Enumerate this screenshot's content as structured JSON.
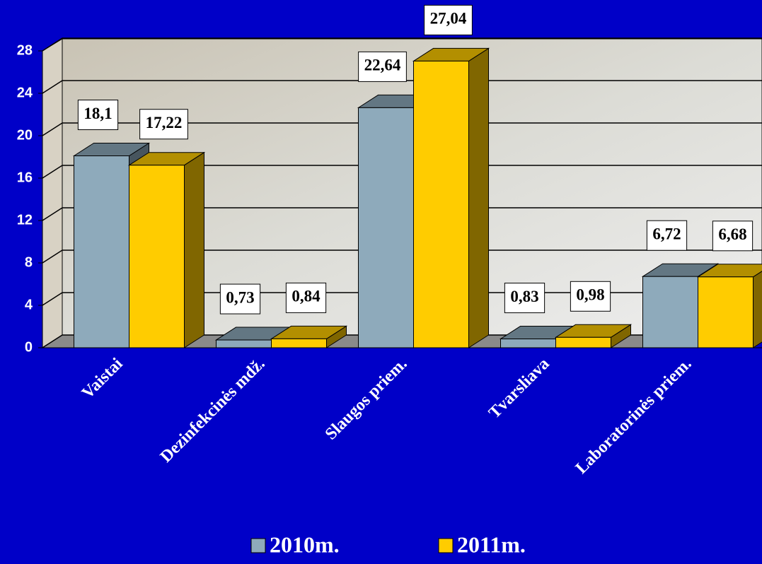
{
  "chart_data": {
    "type": "bar",
    "categories": [
      "Vaistai",
      "Dezinfekcinės mdž.",
      "Slaugos priem.",
      "Tvarsliava",
      "Laboratorinės priem."
    ],
    "series": [
      {
        "name": "2010m.",
        "color": "#8eaabb",
        "values": [
          18.1,
          0.73,
          22.64,
          0.83,
          6.72
        ],
        "value_labels": [
          "18,1",
          "0,73",
          "22,64",
          "0,83",
          "6,72"
        ]
      },
      {
        "name": "2011m.",
        "color": "#ffcc00",
        "values": [
          17.22,
          0.84,
          27.04,
          0.98,
          6.68
        ],
        "value_labels": [
          "17,22",
          "0,84",
          "27,04",
          "0,98",
          "6,68"
        ]
      }
    ],
    "ylim": [
      0,
      28
    ],
    "yticks": [
      0,
      4,
      8,
      12,
      16,
      20,
      24,
      28
    ],
    "grid": true
  }
}
